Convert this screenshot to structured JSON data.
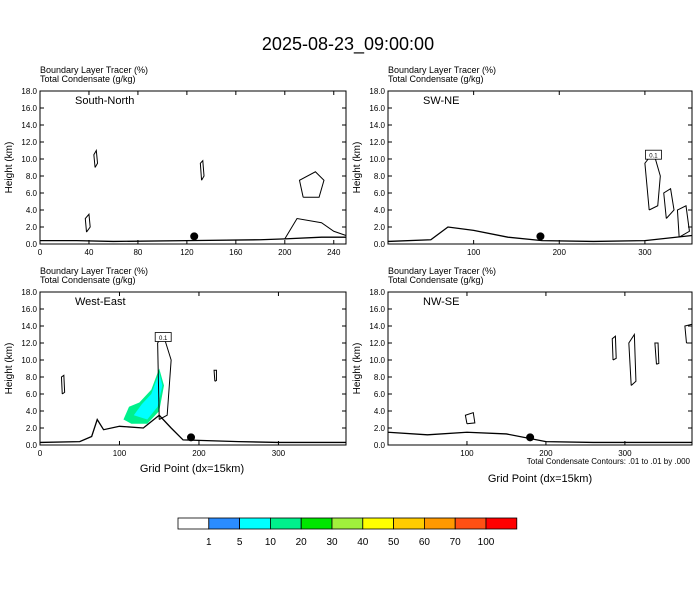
{
  "figure": {
    "title": "2025-08-23_09:00:00",
    "contour_note": "Total Condensate Contours: .01 to .01 by .000",
    "xlabel": "Grid Point (dx=15km)",
    "ylabel": "Height (km)"
  },
  "colorbar": {
    "labels": [
      "1",
      "5",
      "10",
      "20",
      "30",
      "40",
      "50",
      "60",
      "70",
      "100"
    ],
    "colors": [
      "#ffffff",
      "#2a8cff",
      "#00ffff",
      "#00f08c",
      "#00e600",
      "#a0f03c",
      "#ffff00",
      "#ffcc00",
      "#ff9900",
      "#ff5014",
      "#ff0000"
    ]
  },
  "chart_data": [
    {
      "type": "contour",
      "label": "South-North",
      "header1": "Boundary Layer Tracer   (%)",
      "header2": "Total Condensate   (g/kg)",
      "xlim": [
        0,
        250
      ],
      "xticks": [
        0,
        40,
        80,
        120,
        160,
        200,
        240
      ],
      "ylim": [
        0,
        18
      ],
      "yticks": [
        "0.0",
        "2.0",
        "4.0",
        "6.0",
        "8.0",
        "10.0",
        "12.0",
        "14.0",
        "16.0",
        "18.0"
      ],
      "station_marker": {
        "x": 126,
        "y": 0.9
      },
      "terrain": [
        [
          0,
          0.4
        ],
        [
          30,
          0.4
        ],
        [
          60,
          0.3
        ],
        [
          120,
          0.4
        ],
        [
          180,
          0.5
        ],
        [
          200,
          0.6
        ],
        [
          230,
          0.8
        ],
        [
          250,
          0.8
        ]
      ],
      "condensate_contours": [
        [
          [
            38,
            1.4
          ],
          [
            37,
            3.0
          ],
          [
            40,
            3.5
          ],
          [
            41,
            2.0
          ],
          [
            38,
            1.4
          ]
        ],
        [
          [
            45,
            9.0
          ],
          [
            44,
            10.5
          ],
          [
            46,
            11.0
          ],
          [
            47,
            9.5
          ],
          [
            45,
            9.0
          ]
        ],
        [
          [
            132,
            7.5
          ],
          [
            131,
            9.5
          ],
          [
            133,
            9.8
          ],
          [
            134,
            8.0
          ],
          [
            132,
            7.5
          ]
        ],
        [
          [
            200,
            0.6
          ],
          [
            210,
            3.0
          ],
          [
            230,
            2.5
          ],
          [
            240,
            1.5
          ],
          [
            250,
            1.0
          ]
        ],
        [
          [
            215,
            5.5
          ],
          [
            212,
            7.5
          ],
          [
            225,
            8.5
          ],
          [
            232,
            7.5
          ],
          [
            228,
            5.5
          ],
          [
            215,
            5.5
          ]
        ]
      ]
    },
    {
      "type": "contour",
      "label": "SW-NE",
      "header1": "Boundary Layer Tracer   (%)",
      "header2": "Total Condensate   (g/kg)",
      "xlim": [
        0,
        355
      ],
      "xticks": [
        100,
        200,
        300
      ],
      "ylim": [
        0,
        18
      ],
      "yticks": [
        "0.0",
        "2.0",
        "4.0",
        "6.0",
        "8.0",
        "10.0",
        "12.0",
        "14.0",
        "16.0",
        "18.0"
      ],
      "station_marker": {
        "x": 178,
        "y": 0.9
      },
      "terrain": [
        [
          0,
          0.3
        ],
        [
          50,
          0.5
        ],
        [
          70,
          2.0
        ],
        [
          100,
          1.6
        ],
        [
          140,
          0.8
        ],
        [
          180,
          0.4
        ],
        [
          240,
          0.3
        ],
        [
          300,
          0.4
        ],
        [
          355,
          1.0
        ]
      ],
      "condensate_contours": [
        [
          [
            305,
            4.0
          ],
          [
            300,
            9.5
          ],
          [
            310,
            10.8
          ],
          [
            318,
            8.0
          ],
          [
            315,
            4.5
          ],
          [
            305,
            4.0
          ]
        ],
        [
          [
            325,
            3.0
          ],
          [
            322,
            6.0
          ],
          [
            330,
            6.5
          ],
          [
            334,
            4.0
          ],
          [
            325,
            3.0
          ]
        ],
        [
          [
            340,
            0.8
          ],
          [
            338,
            4.0
          ],
          [
            348,
            4.5
          ],
          [
            352,
            1.5
          ],
          [
            340,
            0.8
          ]
        ]
      ],
      "inner_label": "0.1"
    },
    {
      "type": "contour",
      "label": "West-East",
      "header1": "Boundary Layer Tracer   (%)",
      "header2": "Total Condensate   (g/kg)",
      "xlim": [
        0,
        385
      ],
      "xticks": [
        0,
        100,
        200,
        300
      ],
      "ylim": [
        0,
        18
      ],
      "yticks": [
        "0.0",
        "2.0",
        "4.0",
        "6.0",
        "8.0",
        "10.0",
        "12.0",
        "14.0",
        "16.0",
        "18.0"
      ],
      "station_marker": {
        "x": 190,
        "y": 0.9
      },
      "terrain": [
        [
          0,
          0.3
        ],
        [
          50,
          0.4
        ],
        [
          65,
          1.0
        ],
        [
          72,
          3.0
        ],
        [
          80,
          1.8
        ],
        [
          100,
          2.2
        ],
        [
          130,
          2.0
        ],
        [
          150,
          3.5
        ],
        [
          165,
          2.0
        ],
        [
          180,
          0.6
        ],
        [
          250,
          0.4
        ],
        [
          300,
          0.3
        ],
        [
          385,
          0.3
        ]
      ],
      "tracer_fill": [
        {
          "band": "10",
          "polygon": [
            [
              105,
              3.0
            ],
            [
              112,
              4.5
            ],
            [
              125,
              5.0
            ],
            [
              140,
              6.5
            ],
            [
              150,
              9.0
            ],
            [
              156,
              7.0
            ],
            [
              150,
              4.0
            ],
            [
              135,
              2.5
            ],
            [
              115,
              2.5
            ],
            [
              105,
              3.0
            ]
          ]
        },
        {
          "band": "5",
          "polygon": [
            [
              118,
              3.5
            ],
            [
              128,
              4.8
            ],
            [
              140,
              6.0
            ],
            [
              150,
              8.5
            ],
            [
              154,
              7.0
            ],
            [
              148,
              4.5
            ],
            [
              135,
              3.0
            ],
            [
              118,
              3.5
            ]
          ]
        }
      ],
      "condensate_contours": [
        [
          [
            150,
            3.0
          ],
          [
            148,
            12.0
          ],
          [
            155,
            13.0
          ],
          [
            165,
            10.0
          ],
          [
            160,
            3.5
          ],
          [
            150,
            3.0
          ]
        ],
        [
          [
            28,
            6.0
          ],
          [
            27,
            8.0
          ],
          [
            30,
            8.2
          ],
          [
            31,
            6.2
          ],
          [
            28,
            6.0
          ]
        ],
        [
          [
            220,
            7.5
          ],
          [
            219,
            8.8
          ],
          [
            222,
            8.8
          ],
          [
            222,
            7.6
          ],
          [
            220,
            7.5
          ]
        ]
      ],
      "inner_label": "0.1"
    },
    {
      "type": "contour",
      "label": "NW-SE",
      "header1": "Boundary Layer Tracer   (%)",
      "header2": "Total Condensate   (g/kg)",
      "xlim": [
        0,
        385
      ],
      "xticks": [
        100,
        200,
        300
      ],
      "ylim": [
        0,
        18
      ],
      "yticks": [
        "0.0",
        "2.0",
        "4.0",
        "6.0",
        "8.0",
        "10.0",
        "12.0",
        "14.0",
        "16.0",
        "18.0"
      ],
      "station_marker": {
        "x": 180,
        "y": 0.9
      },
      "terrain": [
        [
          0,
          1.5
        ],
        [
          50,
          1.2
        ],
        [
          100,
          1.5
        ],
        [
          150,
          1.3
        ],
        [
          200,
          0.4
        ],
        [
          260,
          0.3
        ],
        [
          320,
          0.3
        ],
        [
          385,
          0.3
        ]
      ],
      "condensate_contours": [
        [
          [
            100,
            2.5
          ],
          [
            98,
            3.5
          ],
          [
            108,
            3.8
          ],
          [
            110,
            2.6
          ],
          [
            100,
            2.5
          ]
        ],
        [
          [
            285,
            10.0
          ],
          [
            284,
            12.5
          ],
          [
            288,
            12.8
          ],
          [
            289,
            10.2
          ],
          [
            285,
            10.0
          ]
        ],
        [
          [
            308,
            7.0
          ],
          [
            305,
            12.0
          ],
          [
            312,
            13.0
          ],
          [
            314,
            7.5
          ],
          [
            308,
            7.0
          ]
        ],
        [
          [
            340,
            9.5
          ],
          [
            338,
            12.0
          ],
          [
            342,
            12.0
          ],
          [
            343,
            9.6
          ],
          [
            340,
            9.5
          ]
        ],
        [
          [
            378,
            12.0
          ],
          [
            376,
            14.0
          ],
          [
            385,
            14.2
          ],
          [
            385,
            12.0
          ],
          [
            378,
            12.0
          ]
        ]
      ]
    }
  ]
}
